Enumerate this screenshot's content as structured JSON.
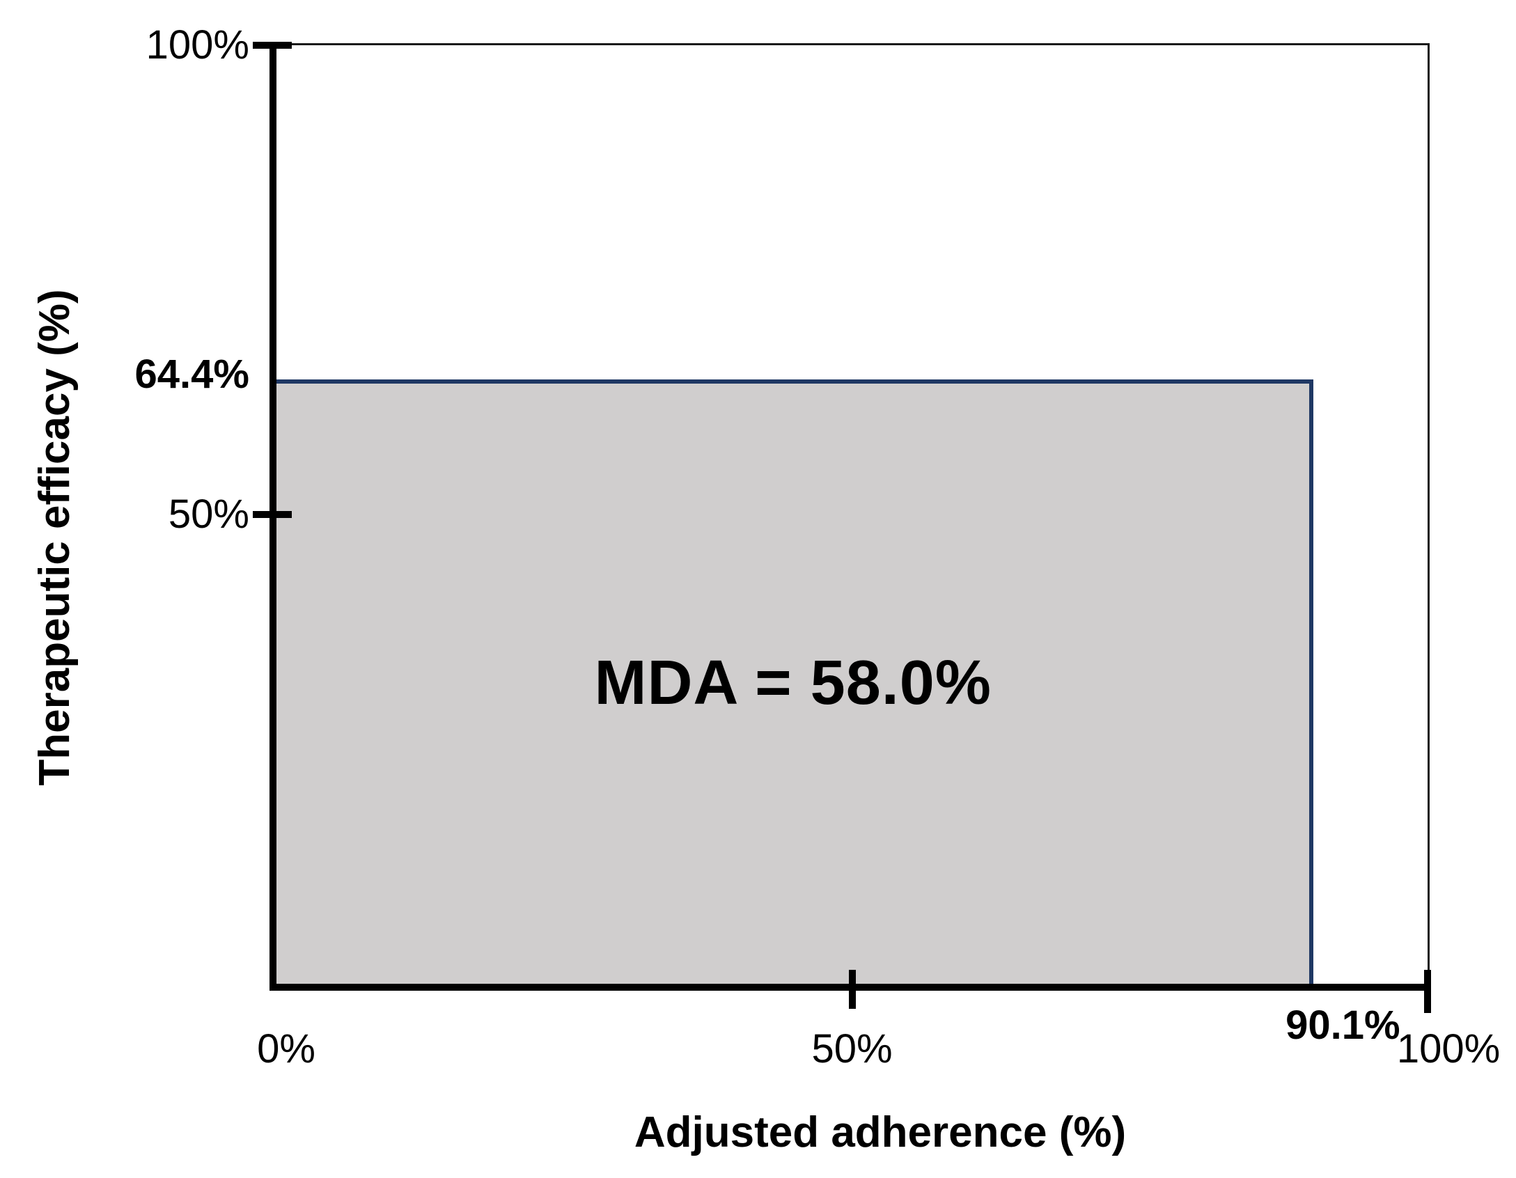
{
  "chart_data": {
    "type": "area",
    "title": "",
    "xlabel": "Adjusted adherence (%)",
    "ylabel": "Therapeutic efficacy (%)",
    "xlim": [
      0,
      100
    ],
    "ylim": [
      0,
      100
    ],
    "grid": false,
    "legend": "none",
    "x_ticks": [
      {
        "label": "0%",
        "value": 0,
        "bold": false,
        "has_tick_mark": false
      },
      {
        "label": "50%",
        "value": 50,
        "bold": false,
        "has_tick_mark": true
      },
      {
        "label": "90.1%",
        "value": 90.1,
        "bold": true,
        "has_tick_mark": false
      },
      {
        "label": "100%",
        "value": 100,
        "bold": false,
        "has_tick_mark": true
      }
    ],
    "y_ticks": [
      {
        "label": "100%",
        "value": 100,
        "bold": false,
        "has_tick_mark": true
      },
      {
        "label": "64.4%",
        "value": 64.4,
        "bold": true,
        "has_tick_mark": false
      },
      {
        "label": "50%",
        "value": 50,
        "bold": false,
        "has_tick_mark": true
      }
    ],
    "series": [
      {
        "name": "MDA shaded area",
        "adjusted_adherence_pct": 90.1,
        "therapeutic_efficacy_pct": 64.4,
        "mda_pct": 58.0,
        "area_label": "MDA = 58.0%"
      }
    ],
    "colors": {
      "area_fill": "#d0cece",
      "area_border": "#1f3864",
      "axis_line": "#000000",
      "frame_line": "#1a1a1a",
      "label_text": "#000000",
      "background": "#ffffff"
    }
  }
}
